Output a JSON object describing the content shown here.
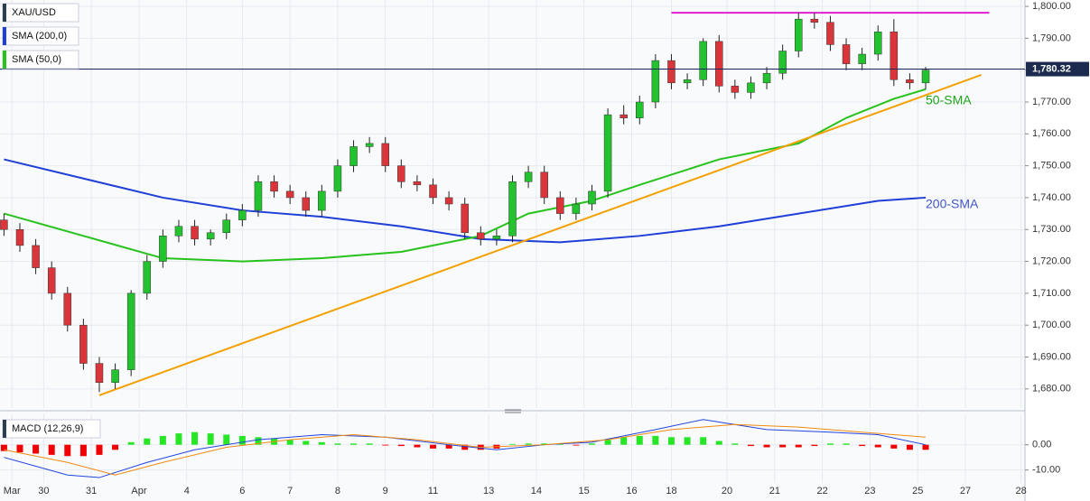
{
  "chart_data": [
    {
      "type": "candlestick",
      "xlim": [
        -0.5,
        128.5
      ],
      "xticks": [
        {
          "value": 1,
          "label": "Mar"
        },
        {
          "value": 5,
          "label": "30"
        },
        {
          "value": 11,
          "label": "31"
        },
        {
          "value": 17,
          "label": "Apr"
        },
        {
          "value": 23,
          "label": "4"
        },
        {
          "value": 30,
          "label": "6"
        },
        {
          "value": 36,
          "label": "7"
        },
        {
          "value": 42,
          "label": "8"
        },
        {
          "value": 48,
          "label": "9"
        },
        {
          "value": 54,
          "label": "11"
        },
        {
          "value": 61,
          "label": "13"
        },
        {
          "value": 67,
          "label": "14"
        },
        {
          "value": 73,
          "label": "15"
        },
        {
          "value": 79,
          "label": "16"
        },
        {
          "value": 84,
          "label": "18"
        },
        {
          "value": 91,
          "label": "20"
        },
        {
          "value": 97,
          "label": "21"
        },
        {
          "value": 103,
          "label": "22"
        },
        {
          "value": 109,
          "label": "23"
        },
        {
          "value": 115,
          "label": "25"
        },
        {
          "value": 121,
          "label": "27"
        },
        {
          "value": 128,
          "label": "28"
        }
      ],
      "ylim": [
        1674,
        1802
      ],
      "yticks": [
        {
          "value": 1680,
          "label": "1,680.00"
        },
        {
          "value": 1690,
          "label": "1,690.00"
        },
        {
          "value": 1700,
          "label": "1,700.00"
        },
        {
          "value": 1710,
          "label": "1,710.00"
        },
        {
          "value": 1720,
          "label": "1,720.00"
        },
        {
          "value": 1730,
          "label": "1,730.00"
        },
        {
          "value": 1740,
          "label": "1,740.00"
        },
        {
          "value": 1750,
          "label": "1,750.00"
        },
        {
          "value": 1760,
          "label": "1,760.00"
        },
        {
          "value": 1770,
          "label": "1,770.00"
        },
        {
          "value": 1780,
          "label": "1,780.00"
        },
        {
          "value": 1790,
          "label": "1,790.00"
        },
        {
          "value": 1800,
          "label": "1,800.00"
        }
      ],
      "grid": true,
      "candles": {
        "name": "XAU/USD",
        "up_color": "#22c32e",
        "down_color": "#d9353a",
        "x": [
          0,
          2,
          4,
          6,
          8,
          10,
          12,
          14,
          16,
          18,
          20,
          22,
          24,
          26,
          28,
          30,
          32,
          34,
          36,
          38,
          40,
          42,
          44,
          46,
          48,
          50,
          52,
          54,
          56,
          58,
          60,
          62,
          64,
          66,
          68,
          70,
          72,
          74,
          76,
          78,
          80,
          82,
          84,
          86,
          88,
          90,
          92,
          94,
          96,
          98,
          100,
          102,
          104,
          106,
          108,
          110,
          112,
          114,
          116
        ],
        "open": [
          1733,
          1730,
          1725,
          1718,
          1710,
          1700,
          1688,
          1682,
          1686,
          1710,
          1720,
          1728,
          1731,
          1727,
          1729,
          1733,
          1736,
          1745,
          1742,
          1740,
          1736,
          1742,
          1750,
          1756,
          1757,
          1750,
          1745,
          1744,
          1740,
          1738,
          1729,
          1727,
          1728,
          1745,
          1748,
          1740,
          1735,
          1738,
          1742,
          1766,
          1765,
          1770,
          1783,
          1776,
          1777,
          1789,
          1775,
          1773,
          1776,
          1779,
          1786,
          1796,
          1795,
          1788,
          1782,
          1785,
          1792,
          1777,
          1776
        ],
        "high": [
          1735,
          1732,
          1727,
          1720,
          1712,
          1702,
          1690,
          1688,
          1711,
          1722,
          1730,
          1733,
          1733,
          1730,
          1735,
          1738,
          1747,
          1747,
          1744,
          1742,
          1744,
          1752,
          1758,
          1759,
          1759,
          1752,
          1747,
          1746,
          1742,
          1740,
          1731,
          1730,
          1747,
          1750,
          1750,
          1742,
          1740,
          1744,
          1768,
          1769,
          1772,
          1785,
          1785,
          1779,
          1790,
          1791,
          1777,
          1778,
          1781,
          1788,
          1798,
          1798,
          1797,
          1790,
          1787,
          1794,
          1796,
          1779,
          1781
        ],
        "low": [
          1728,
          1723,
          1716,
          1708,
          1698,
          1686,
          1679,
          1680,
          1684,
          1708,
          1718,
          1726,
          1725,
          1725,
          1727,
          1731,
          1734,
          1740,
          1738,
          1734,
          1734,
          1740,
          1748,
          1754,
          1748,
          1743,
          1742,
          1738,
          1736,
          1727,
          1725,
          1725,
          1726,
          1743,
          1738,
          1733,
          1733,
          1736,
          1740,
          1763,
          1763,
          1768,
          1774,
          1774,
          1775,
          1773,
          1771,
          1771,
          1774,
          1777,
          1784,
          1793,
          1786,
          1780,
          1780,
          1783,
          1775,
          1774,
          1774
        ],
        "close": [
          1730,
          1725,
          1718,
          1710,
          1700,
          1688,
          1682,
          1686,
          1710,
          1720,
          1728,
          1731,
          1727,
          1729,
          1733,
          1736,
          1745,
          1742,
          1740,
          1736,
          1742,
          1750,
          1756,
          1757,
          1750,
          1745,
          1744,
          1740,
          1738,
          1729,
          1727,
          1728,
          1745,
          1748,
          1740,
          1735,
          1738,
          1742,
          1766,
          1765,
          1770,
          1783,
          1776,
          1777,
          1789,
          1775,
          1773,
          1776,
          1779,
          1786,
          1796,
          1795,
          1788,
          1782,
          1785,
          1792,
          1777,
          1776,
          1780
        ]
      },
      "series": [
        {
          "name": "SMA (200,0)",
          "color": "#1f3fd6",
          "x": [
            0,
            10,
            20,
            30,
            40,
            50,
            60,
            70,
            80,
            90,
            100,
            110,
            116
          ],
          "values": [
            1752,
            1746,
            1740,
            1736,
            1734,
            1731,
            1727,
            1726,
            1728,
            1731,
            1735,
            1739,
            1740
          ]
        },
        {
          "name": "SMA (50,0)",
          "color": "#27c21c",
          "x": [
            0,
            10,
            20,
            30,
            40,
            50,
            60,
            66,
            74,
            80,
            90,
            100,
            106,
            112,
            116
          ],
          "values": [
            1735,
            1728,
            1721,
            1720,
            1721,
            1723,
            1728,
            1735,
            1739,
            1744,
            1752,
            1757,
            1765,
            1771,
            1774
          ]
        }
      ],
      "trend_lines": [
        {
          "color": "#f2a100",
          "x": [
            12,
            123
          ],
          "values": [
            1678,
            1778.5
          ]
        },
        {
          "color": "#e020d0",
          "x": [
            84,
            124
          ],
          "values": [
            1798,
            1798
          ]
        }
      ],
      "last_price": {
        "value": 1780.32,
        "label": "1,780.32"
      },
      "annotations": [
        {
          "text": "50-SMA",
          "color": "#1fa51a"
        },
        {
          "text": "200-SMA",
          "color": "#4257c8"
        }
      ]
    },
    {
      "type": "macd",
      "title": "MACD (12,26,9)",
      "ylim": [
        -18.7,
        12.4
      ],
      "yticks": [
        {
          "value": 0,
          "label": "0.00"
        },
        {
          "value": -10,
          "label": "-10.00"
        }
      ],
      "histogram": {
        "pos_color": "#26e626",
        "neg_color": "#f00000",
        "x": [
          0,
          2,
          4,
          6,
          8,
          10,
          12,
          14,
          16,
          18,
          20,
          22,
          24,
          26,
          28,
          30,
          32,
          34,
          36,
          38,
          40,
          42,
          44,
          46,
          48,
          50,
          52,
          54,
          56,
          58,
          60,
          62,
          64,
          66,
          68,
          70,
          72,
          74,
          76,
          78,
          80,
          82,
          84,
          86,
          88,
          90,
          92,
          94,
          96,
          98,
          100,
          102,
          104,
          106,
          108,
          110,
          112,
          114,
          116
        ],
        "values": [
          -2.5,
          -3,
          -3.5,
          -4,
          -4.5,
          -4.5,
          -4,
          -2,
          1,
          2.5,
          3.5,
          4.5,
          5,
          4.5,
          4,
          3.5,
          3,
          2.5,
          2,
          1.5,
          1,
          0.5,
          0.5,
          0.5,
          -0.3,
          -0.5,
          -1,
          -1.5,
          -1.5,
          -2,
          -2,
          -1.5,
          0.3,
          0.5,
          0.5,
          0.3,
          -0.3,
          0.5,
          2,
          3,
          3.5,
          3.5,
          3,
          3,
          3,
          1.5,
          0.5,
          -0.5,
          -1,
          -1,
          -1,
          -0.5,
          0.5,
          0.5,
          -0.5,
          -1,
          -1.5,
          -2,
          -2
        ]
      },
      "series": [
        {
          "color": "#2244dd",
          "x": [
            0,
            8,
            12,
            18,
            24,
            32,
            40,
            48,
            56,
            62,
            68,
            74,
            82,
            88,
            96,
            104,
            110,
            116
          ],
          "values": [
            -5,
            -12,
            -13,
            -7,
            -2,
            2,
            4,
            3,
            0,
            -2,
            0,
            1,
            6,
            10,
            6,
            5,
            4,
            0
          ]
        },
        {
          "color": "#f08a10",
          "x": [
            0,
            8,
            14,
            20,
            28,
            36,
            44,
            52,
            60,
            68,
            76,
            84,
            92,
            100,
            108,
            116
          ],
          "values": [
            -2,
            -7,
            -12,
            -7,
            -1,
            2,
            4,
            2,
            -1,
            0,
            2,
            6,
            8,
            7,
            5,
            3
          ]
        }
      ]
    }
  ]
}
